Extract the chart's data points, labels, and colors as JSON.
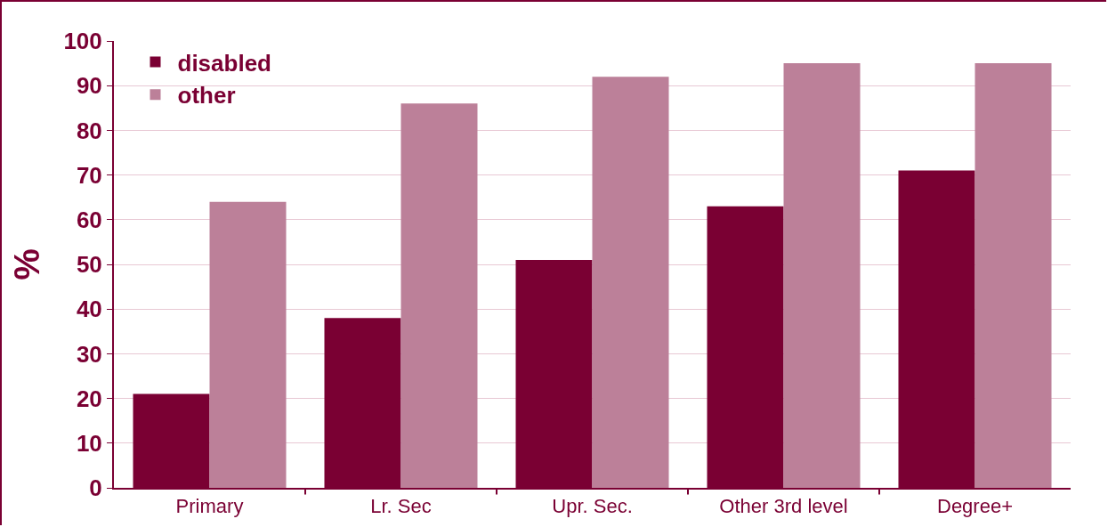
{
  "chart_data": {
    "type": "bar",
    "ylabel": "%",
    "categories": [
      "Primary",
      "Lr. Sec",
      "Upr. Sec.",
      "Other 3rd level",
      "Degree+"
    ],
    "series": [
      {
        "name": "disabled",
        "color": "#7a0033",
        "values": [
          21,
          38,
          51,
          63,
          71
        ]
      },
      {
        "name": "other",
        "color": "#bc8099",
        "values": [
          64,
          86,
          92,
          95,
          95
        ]
      }
    ],
    "ylim": [
      0,
      100
    ],
    "yticks": [
      0,
      10,
      20,
      30,
      40,
      50,
      60,
      70,
      80,
      90,
      100
    ],
    "grid": "y",
    "legend": "top left"
  }
}
